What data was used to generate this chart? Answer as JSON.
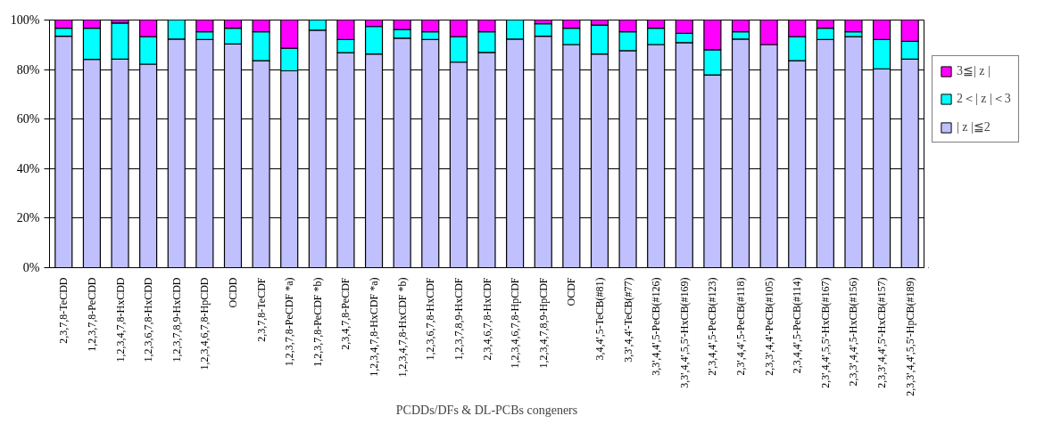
{
  "chart_data": {
    "type": "bar",
    "stacked": true,
    "xlabel": "PCDDs/DFs & DL-PCBs congeners",
    "categories": [
      "2,3,7,8-TeCDD",
      "1,2,3,7,8-PeCDD",
      "1,2,3,4,7,8-HxCDD",
      "1,2,3,6,7,8-HxCDD",
      "1,2,3,7,8,9-HxCDD",
      "1,2,3,4,6,7,8-HpCDD",
      "OCDD",
      "2,3,7,8-TeCDF",
      "1,2,3,7,8-PeCDF *a)",
      "1,2,3,7,8-PeCDF *b)",
      "2,3,4,7,8-PeCDF",
      "1,2,3,4,7,8-HxCDF *a)",
      "1,2,3,4,7,8-HxCDF *b)",
      "1,2,3,6,7,8-HxCDF",
      "1,2,3,7,8,9-HxCDF",
      "2,3,4,6,7,8-HxCDF",
      "1,2,3,4,6,7,8-HpCDF",
      "1,2,3,4,7,8,9-HpCDF",
      "OCDF",
      "3,4,4',5-TeCB(#81)",
      "3,3',4,4'-TeCB(#77)",
      "3,3',4,4',5-PeCB(#126)",
      "3,3',4,4',5,5'-HxCB(#169)",
      "2',3,4,4',5-PeCB(#123)",
      "2,3',4,4',5-PeCB(#118)",
      "2,3,3',4,4'-PeCB(#105)",
      "2,3,4,4',5-PeCB(#114)",
      "2,3',4,4',5,5'-HxCB(#167)",
      "2,3,3',4,4',5-HxCB(#156)",
      "2,3,3',4,4',5'-HxCB(#157)",
      "2,3,3',4,4',5,5'-HpCB(#189)"
    ],
    "series": [
      {
        "name": "| z |≦2",
        "color": "#c0c0ff",
        "values": [
          93.5,
          84.1,
          84.2,
          82.2,
          92.3,
          92.1,
          90.3,
          83.6,
          79.5,
          95.9,
          86.8,
          86.3,
          92.7,
          92.1,
          83.0,
          86.9,
          92.3,
          93.5,
          90.1,
          86.3,
          87.6,
          90.1,
          90.9,
          77.8,
          92.3,
          90.1,
          83.6,
          92.1,
          93.3,
          80.3,
          84.2
        ]
      },
      {
        "name": "2＜| z |＜3",
        "color": "#00ffff",
        "values": [
          3.2,
          12.6,
          14.6,
          11.1,
          7.7,
          3.2,
          6.4,
          11.7,
          9.1,
          4.1,
          5.3,
          11.1,
          3.5,
          3.2,
          10.3,
          8.4,
          7.7,
          5.0,
          6.6,
          11.7,
          7.7,
          6.6,
          3.8,
          10.2,
          3.0,
          0,
          9.7,
          4.6,
          2.0,
          11.8,
          7.2
        ]
      },
      {
        "name": "3≦| z |",
        "color": "#ff00ff",
        "values": [
          3.3,
          3.3,
          1.2,
          6.7,
          0,
          4.7,
          3.3,
          4.7,
          11.4,
          0,
          7.9,
          2.6,
          3.8,
          4.7,
          6.7,
          4.7,
          0,
          1.5,
          3.3,
          2.0,
          4.7,
          3.3,
          5.3,
          12.0,
          4.7,
          9.9,
          6.7,
          3.3,
          4.7,
          7.9,
          8.6
        ]
      }
    ],
    "ylim": [
      0,
      100
    ],
    "yticks": [
      {
        "value": 0,
        "label": "0%"
      },
      {
        "value": 20,
        "label": "20%"
      },
      {
        "value": 40,
        "label": "40%"
      },
      {
        "value": 60,
        "label": "60%"
      },
      {
        "value": 80,
        "label": "80%"
      },
      {
        "value": 100,
        "label": "100%"
      }
    ],
    "grid": "y",
    "legend": "right"
  }
}
